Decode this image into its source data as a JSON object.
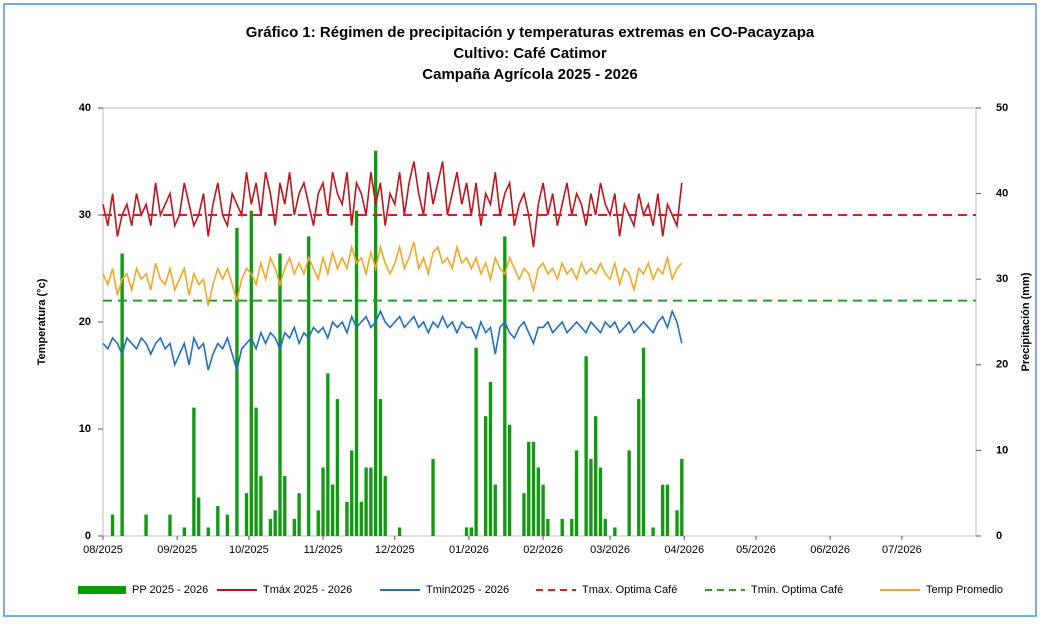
{
  "chart_data": {
    "type": "combo",
    "title": [
      "Gráfico 1:  Régimen de precipitación y temperaturas extremas en CO-Pacayzapa",
      "Cultivo: Café Catimor",
      "Campaña Agrícola 2025 - 2026"
    ],
    "ylabel": "Temperatura (°c)",
    "y2label": "Precipitación (mm)",
    "xlim": [
      0,
      365
    ],
    "xticks": [
      {
        "value": 0,
        "label": "08/2025"
      },
      {
        "value": 31,
        "label": "09/2025"
      },
      {
        "value": 61,
        "label": "10/2025"
      },
      {
        "value": 92,
        "label": "11/2025"
      },
      {
        "value": 122,
        "label": "12/2025"
      },
      {
        "value": 153,
        "label": "01/2026"
      },
      {
        "value": 184,
        "label": "02/2026"
      },
      {
        "value": 212,
        "label": "03/2026"
      },
      {
        "value": 243,
        "label": "04/2026"
      },
      {
        "value": 273,
        "label": "05/2026"
      },
      {
        "value": 304,
        "label": "06/2026"
      },
      {
        "value": 334,
        "label": "07/2026"
      }
    ],
    "ylim": [
      0,
      40
    ],
    "yticks": [
      0,
      10,
      20,
      30,
      40
    ],
    "y2lim": [
      0,
      50
    ],
    "y2ticks": [
      0,
      10,
      20,
      30,
      40,
      50
    ],
    "grid": false,
    "x": [
      0,
      2,
      4,
      6,
      8,
      10,
      12,
      14,
      16,
      18,
      20,
      22,
      24,
      26,
      28,
      30,
      32,
      34,
      36,
      38,
      40,
      42,
      44,
      46,
      48,
      50,
      52,
      54,
      56,
      58,
      60,
      62,
      64,
      66,
      68,
      70,
      72,
      74,
      76,
      78,
      80,
      82,
      84,
      86,
      88,
      90,
      92,
      94,
      96,
      98,
      100,
      102,
      104,
      106,
      108,
      110,
      112,
      114,
      116,
      118,
      120,
      122,
      124,
      126,
      128,
      130,
      132,
      134,
      136,
      138,
      140,
      142,
      144,
      146,
      148,
      150,
      152,
      154,
      156,
      158,
      160,
      162,
      164,
      166,
      168,
      170,
      172,
      174,
      176,
      178,
      180,
      182,
      184,
      186,
      188,
      190,
      192,
      194,
      196,
      198,
      200,
      202,
      204,
      206,
      208,
      210,
      212,
      214,
      216,
      218,
      220,
      222,
      224,
      226,
      228,
      230,
      232,
      234,
      236,
      238,
      240,
      242
    ],
    "series": [
      {
        "name": "PP 2025 - 2026",
        "type": "bar",
        "axis": "y2",
        "color": "#109a10",
        "values": [
          0,
          0,
          2.5,
          0,
          33,
          0,
          0,
          0,
          0,
          2.5,
          0,
          0,
          0,
          0,
          2.5,
          0,
          0,
          1,
          0,
          15,
          4.5,
          0,
          1,
          0,
          3.5,
          0,
          2.5,
          0,
          36,
          0,
          5,
          38,
          15,
          7,
          0,
          2,
          3,
          33,
          7,
          0,
          2,
          5,
          0,
          35,
          0,
          3,
          8,
          19,
          6,
          16,
          0,
          4,
          10,
          38,
          4,
          8,
          8,
          45,
          16,
          7,
          0,
          0,
          1,
          0,
          0,
          0,
          0,
          0,
          0,
          9,
          0,
          0,
          0,
          0,
          0,
          0,
          1,
          1,
          22,
          0,
          14,
          18,
          6,
          0,
          35,
          13,
          0,
          0,
          5,
          11,
          11,
          8,
          6,
          2,
          0,
          0,
          2,
          0,
          2,
          10,
          0,
          21,
          9,
          14,
          8,
          2,
          0,
          1,
          0,
          0,
          10,
          0,
          16,
          22,
          0,
          1,
          0,
          6,
          6,
          0,
          3,
          9
        ]
      },
      {
        "name": "Tmáx 2025 - 2026",
        "type": "line",
        "color": "#c0141c",
        "values": [
          31,
          29,
          32,
          28,
          30,
          31,
          29,
          32,
          30,
          31,
          29,
          33,
          30,
          31,
          32,
          29,
          30,
          33,
          31,
          29,
          30,
          32,
          28,
          31,
          33,
          30,
          29,
          32,
          31,
          30,
          34,
          31,
          33,
          30,
          34,
          32,
          29,
          33,
          31,
          34,
          30,
          32,
          33,
          31,
          29,
          32,
          33,
          30,
          34,
          32,
          31,
          34,
          29,
          33,
          32,
          30,
          34,
          31,
          33,
          29,
          32,
          31,
          34,
          30,
          33,
          35,
          32,
          30,
          34,
          31,
          33,
          35,
          30,
          32,
          34,
          31,
          33,
          30,
          33,
          29,
          32,
          31,
          34,
          30,
          32,
          33,
          29,
          31,
          32,
          30,
          27,
          31,
          33,
          30,
          32,
          29,
          31,
          33,
          30,
          32,
          31,
          29,
          32,
          30,
          33,
          31,
          30,
          32,
          28,
          31,
          30,
          29,
          32,
          30,
          31,
          29,
          32,
          28,
          31,
          30,
          29,
          33
        ]
      },
      {
        "name": "Tmin2025 - 2026",
        "type": "line",
        "color": "#1f6fc4",
        "values": [
          18,
          17.5,
          18.5,
          18,
          17,
          18.5,
          18,
          17.5,
          18.5,
          18,
          17,
          18,
          18.5,
          17.5,
          18,
          16,
          17,
          18,
          16,
          18.5,
          17.5,
          18,
          15.5,
          17,
          18,
          17.5,
          18.5,
          17,
          15.5,
          17.5,
          18,
          18.5,
          17.5,
          19,
          18,
          19,
          18.5,
          17.5,
          19,
          18.5,
          19.5,
          18,
          19,
          18.5,
          19.5,
          19,
          19.5,
          18.5,
          20,
          19.5,
          20,
          19,
          20.5,
          19.5,
          20,
          20.5,
          19.5,
          20,
          21,
          20,
          19.5,
          20,
          20.5,
          19.5,
          20,
          20.5,
          19.5,
          20,
          19,
          20,
          19.5,
          20.5,
          19.5,
          20,
          19,
          20,
          19.5,
          19.5,
          18.5,
          20,
          19,
          19.5,
          17,
          19.5,
          20,
          19,
          18.5,
          19.5,
          20,
          19,
          18,
          19.5,
          19.5,
          20,
          19,
          19.5,
          20,
          19,
          19.5,
          20,
          19.5,
          19,
          20,
          19.5,
          19,
          20,
          19.5,
          20,
          19,
          19.5,
          20,
          19,
          19.5,
          20,
          19.5,
          19,
          20,
          20.5,
          19.5,
          21,
          20,
          18
        ]
      },
      {
        "name": "Tmax. Optima Café",
        "type": "hline",
        "color": "#e41a1c",
        "value": 30
      },
      {
        "name": "Tmin. Optima Café",
        "type": "hline",
        "color": "#2a9d2a",
        "value": 22
      },
      {
        "name": "Temp Promedio",
        "type": "line",
        "color": "#f5a623",
        "values": [
          24.5,
          23.5,
          25,
          22.5,
          24,
          24.5,
          23,
          25,
          24,
          24.5,
          23,
          25.5,
          24,
          23.5,
          25,
          23,
          24,
          25,
          22.5,
          24.5,
          23.5,
          24,
          21.5,
          23.5,
          25,
          24,
          25,
          23.5,
          22,
          24,
          25,
          24.5,
          23.5,
          25.5,
          24,
          26,
          25,
          23.5,
          25,
          26,
          24.5,
          25.5,
          24.5,
          26,
          25,
          24,
          26,
          24.5,
          26.5,
          25,
          26,
          25,
          27,
          25.5,
          26,
          24.5,
          26.5,
          25,
          27,
          25.5,
          24.5,
          25.5,
          27,
          25,
          26,
          27.5,
          25,
          26,
          24.5,
          26.5,
          27,
          25.5,
          26,
          25,
          27,
          25.5,
          26,
          25,
          26,
          24.5,
          25.5,
          24,
          26,
          25,
          24.5,
          26,
          25,
          24,
          25,
          24.5,
          23,
          25,
          25.5,
          24.5,
          25,
          24,
          25.5,
          24.5,
          25,
          24,
          25.5,
          24.5,
          25,
          24.5,
          25.5,
          24.5,
          24,
          25.5,
          23.5,
          25,
          24.5,
          23,
          25,
          24.5,
          25.5,
          24,
          25,
          24.5,
          26,
          24,
          25,
          25.5
        ]
      }
    ]
  }
}
